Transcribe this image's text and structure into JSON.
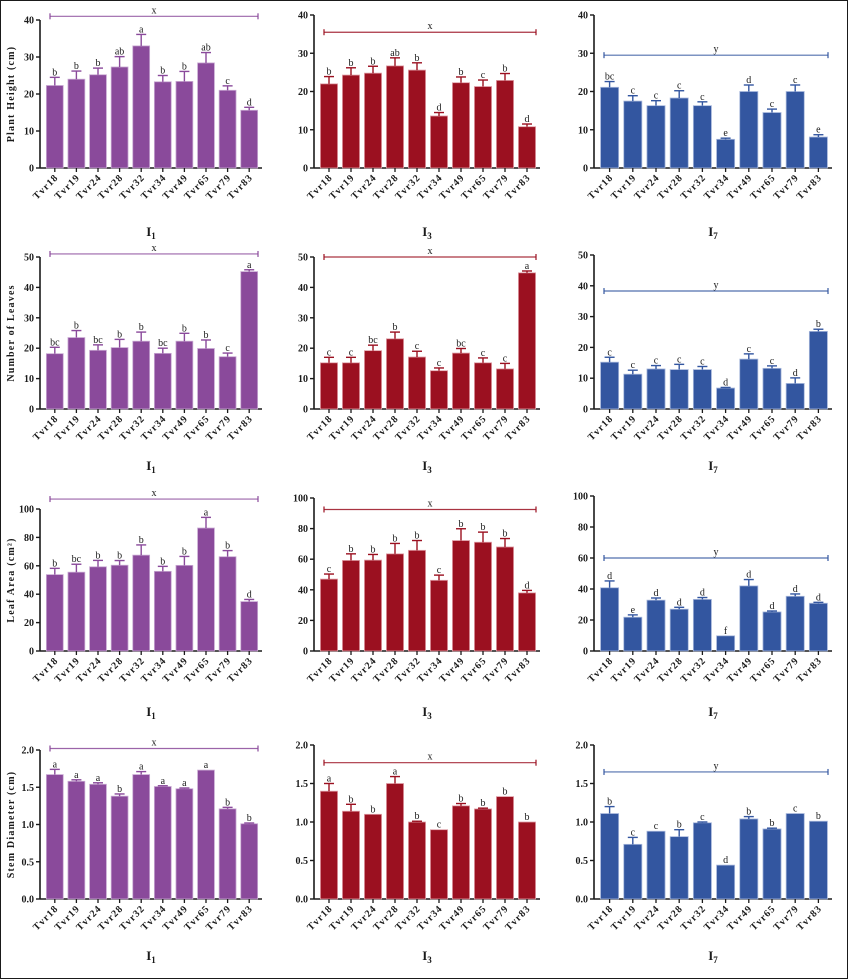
{
  "figure": {
    "categories": [
      "Tvr18",
      "Tvr19",
      "Tvr24",
      "Tvr28",
      "Tvr32",
      "Tvr34",
      "Tvr49",
      "Tvr65",
      "Tvr79",
      "Tvr83"
    ],
    "treatments": [
      {
        "label_main": "I",
        "label_sub": "1",
        "color": "#8a4a9b",
        "edge": "#c8a8d2"
      },
      {
        "label_main": "I",
        "label_sub": "3",
        "color": "#9b1020",
        "edge": "#e0a0a8"
      },
      {
        "label_main": "I",
        "label_sub": "7",
        "color": "#3356a0",
        "edge": "#a8b8dc"
      }
    ]
  },
  "chart_data": [
    {
      "type": "bar",
      "row": 0,
      "col": 0,
      "title": "",
      "xlabel": "I1",
      "ylabel": "Plant Height (cm)",
      "ylim": [
        0,
        40
      ],
      "yticks": [
        "0",
        "10",
        "20",
        "30",
        "40"
      ],
      "yvals": [
        0,
        10,
        20,
        30,
        40
      ],
      "categories": [
        "Tvr18",
        "Tvr19",
        "Tvr24",
        "Tvr28",
        "Tvr32",
        "Tvr34",
        "Tvr49",
        "Tvr65",
        "Tvr79",
        "Tvr83"
      ],
      "values": [
        22.3,
        24,
        25.2,
        27.3,
        33,
        23.3,
        23.4,
        28.4,
        21,
        15.6
      ],
      "errors": [
        2.2,
        2.2,
        1.8,
        2.8,
        3.1,
        1.7,
        2.7,
        2.8,
        1.2,
        0.8
      ],
      "letters": [
        "b",
        "b",
        "b",
        "ab",
        "a",
        "b",
        "b",
        "ab",
        "c",
        "d"
      ],
      "group": {
        "label": "x",
        "y": 41
      }
    },
    {
      "type": "bar",
      "row": 0,
      "col": 1,
      "title": "",
      "xlabel": "I3",
      "ylabel": "",
      "ylim": [
        0,
        40
      ],
      "yticks": [
        "0",
        "10",
        "20",
        "30",
        "40"
      ],
      "yvals": [
        0,
        10,
        20,
        30,
        40
      ],
      "categories": [
        "Tvr18",
        "Tvr19",
        "Tvr24",
        "Tvr28",
        "Tvr32",
        "Tvr34",
        "Tvr49",
        "Tvr65",
        "Tvr79",
        "Tvr83"
      ],
      "values": [
        22,
        24.3,
        24.8,
        26.7,
        25.6,
        13.6,
        22.3,
        21.3,
        22.9,
        10.8
      ],
      "errors": [
        1.9,
        1.9,
        1.8,
        2.1,
        1.9,
        0.9,
        1.5,
        1.7,
        1.8,
        0.7
      ],
      "letters": [
        "b",
        "b",
        "b",
        "ab",
        "b",
        "d",
        "b",
        "c",
        "b",
        "d"
      ],
      "group": {
        "label": "x",
        "y": 35.5
      }
    },
    {
      "type": "bar",
      "row": 0,
      "col": 2,
      "title": "",
      "xlabel": "I7",
      "ylabel": "",
      "ylim": [
        0,
        40
      ],
      "yticks": [
        "0",
        "10",
        "20",
        "30",
        "40"
      ],
      "yvals": [
        0,
        10,
        20,
        30,
        40
      ],
      "categories": [
        "Tvr18",
        "Tvr19",
        "Tvr24",
        "Tvr28",
        "Tvr32",
        "Tvr34",
        "Tvr49",
        "Tvr65",
        "Tvr79",
        "Tvr83"
      ],
      "values": [
        21.1,
        17.5,
        16.3,
        18.3,
        16.3,
        7.5,
        20,
        14.5,
        20,
        8.1
      ],
      "errors": [
        1.5,
        1.4,
        1.3,
        1.9,
        1,
        0.3,
        1.7,
        0.9,
        1.7,
        0.6
      ],
      "letters": [
        "bc",
        "c",
        "c",
        "c",
        "c",
        "e",
        "d",
        "c",
        "c",
        "e"
      ],
      "group": {
        "label": "y",
        "y": 29.5
      }
    },
    {
      "type": "bar",
      "row": 1,
      "col": 0,
      "title": "",
      "xlabel": "I1",
      "ylabel": "Number of Leaves",
      "ylim": [
        0,
        50
      ],
      "yticks": [
        "0",
        "10",
        "20",
        "30",
        "40",
        "50"
      ],
      "yvals": [
        0,
        10,
        20,
        30,
        40,
        50
      ],
      "categories": [
        "Tvr18",
        "Tvr19",
        "Tvr24",
        "Tvr28",
        "Tvr32",
        "Tvr34",
        "Tvr49",
        "Tvr65",
        "Tvr79",
        "Tvr83"
      ],
      "values": [
        18.2,
        23.5,
        19.3,
        20.2,
        22.3,
        18.3,
        22.3,
        19.9,
        17.2,
        45.2
      ],
      "errors": [
        2.1,
        2.3,
        1.8,
        2.7,
        3,
        1.7,
        2.6,
        2.8,
        1.2,
        0.6
      ],
      "letters": [
        "bc",
        "b",
        "bc",
        "b",
        "b",
        "bc",
        "b",
        "b",
        "c",
        "a"
      ],
      "group": {
        "label": "x",
        "y": 51
      }
    },
    {
      "type": "bar",
      "row": 1,
      "col": 1,
      "title": "",
      "xlabel": "I3",
      "ylabel": "",
      "ylim": [
        0,
        50
      ],
      "yticks": [
        "0",
        "10",
        "20",
        "30",
        "40",
        "50"
      ],
      "yvals": [
        0,
        10,
        20,
        30,
        40,
        50
      ],
      "categories": [
        "Tvr18",
        "Tvr19",
        "Tvr24",
        "Tvr28",
        "Tvr32",
        "Tvr34",
        "Tvr49",
        "Tvr65",
        "Tvr79",
        "Tvr83"
      ],
      "values": [
        15.2,
        15.2,
        19.2,
        23.1,
        17.1,
        12.6,
        18.4,
        15.2,
        13.2,
        44.8
      ],
      "errors": [
        1.8,
        1.8,
        1.8,
        2.2,
        1.9,
        0.9,
        1.5,
        1.6,
        1.8,
        0.6
      ],
      "letters": [
        "c",
        "c",
        "bc",
        "b",
        "c",
        "c",
        "bc",
        "c",
        "c",
        "a"
      ],
      "group": {
        "label": "x",
        "y": 50
      }
    },
    {
      "type": "bar",
      "row": 1,
      "col": 2,
      "title": "",
      "xlabel": "I7",
      "ylabel": "",
      "ylim": [
        0,
        50
      ],
      "yticks": [
        "0",
        "10",
        "20",
        "30",
        "40",
        "50"
      ],
      "yvals": [
        0,
        10,
        20,
        30,
        40,
        50
      ],
      "categories": [
        "Tvr18",
        "Tvr19",
        "Tvr24",
        "Tvr28",
        "Tvr32",
        "Tvr34",
        "Tvr49",
        "Tvr65",
        "Tvr79",
        "Tvr83"
      ],
      "values": [
        15.2,
        11.3,
        13,
        12.8,
        12.8,
        6.8,
        16.2,
        13.2,
        8.3,
        25.2
      ],
      "errors": [
        1.6,
        1.3,
        1.1,
        1.7,
        1,
        0.2,
        1.7,
        0.8,
        1.8,
        0.7
      ],
      "letters": [
        "c",
        "c",
        "c",
        "c",
        "c",
        "d",
        "c",
        "c",
        "d",
        "b"
      ],
      "group": {
        "label": "y",
        "y": 38.3
      }
    },
    {
      "type": "bar",
      "row": 2,
      "col": 0,
      "title": "",
      "xlabel": "I1",
      "ylabel": "Leaf Area (cm²)",
      "ylim": [
        0,
        100
      ],
      "yticks": [
        "0",
        "20",
        "40",
        "60",
        "80",
        "100"
      ],
      "yvals": [
        0,
        20,
        40,
        60,
        80,
        100
      ],
      "categories": [
        "Tvr18",
        "Tvr19",
        "Tvr24",
        "Tvr28",
        "Tvr32",
        "Tvr34",
        "Tvr49",
        "Tvr65",
        "Tvr79",
        "Tvr83"
      ],
      "values": [
        53.8,
        55.5,
        59.3,
        60.4,
        67.5,
        56.1,
        60.3,
        86.6,
        66.4,
        34.8
      ],
      "errors": [
        4.4,
        5.6,
        4.5,
        3.3,
        7.2,
        3.5,
        6.3,
        7.5,
        4.3,
        1.5
      ],
      "letters": [
        "b",
        "bc",
        "b",
        "b",
        "b",
        "b",
        "b",
        "a",
        "b",
        "d"
      ],
      "group": {
        "label": "x",
        "y": 107
      }
    },
    {
      "type": "bar",
      "row": 2,
      "col": 1,
      "title": "",
      "xlabel": "I3",
      "ylabel": "",
      "ylim": [
        0,
        100
      ],
      "yticks": [
        "0",
        "20",
        "40",
        "60",
        "80",
        "100"
      ],
      "yvals": [
        0,
        20,
        40,
        60,
        80,
        100
      ],
      "categories": [
        "Tvr18",
        "Tvr19",
        "Tvr24",
        "Tvr28",
        "Tvr32",
        "Tvr34",
        "Tvr49",
        "Tvr65",
        "Tvr79",
        "Tvr83"
      ],
      "values": [
        47,
        59.2,
        59.4,
        63.5,
        65.8,
        46.2,
        72.2,
        71.1,
        68,
        38
      ],
      "errors": [
        3.3,
        4.3,
        3.7,
        6.8,
        6.4,
        3.4,
        7.7,
        6.6,
        5.5,
        1.6
      ],
      "letters": [
        "c",
        "b",
        "b",
        "b",
        "b",
        "c",
        "b",
        "b",
        "b",
        "d"
      ],
      "group": {
        "label": "x",
        "y": 92.5
      }
    },
    {
      "type": "bar",
      "row": 2,
      "col": 2,
      "title": "",
      "xlabel": "I7",
      "ylabel": "",
      "ylim": [
        0,
        100
      ],
      "yticks": [
        "0",
        "20",
        "40",
        "60",
        "80",
        "100"
      ],
      "yvals": [
        0,
        20,
        40,
        60,
        80,
        100
      ],
      "categories": [
        "Tvr18",
        "Tvr19",
        "Tvr24",
        "Tvr28",
        "Tvr32",
        "Tvr34",
        "Tvr49",
        "Tvr65",
        "Tvr79",
        "Tvr83"
      ],
      "values": [
        40.8,
        21.8,
        32.8,
        27,
        33.3,
        9.8,
        42,
        25.2,
        35.3,
        30.8
      ],
      "errors": [
        4.4,
        1.5,
        1.4,
        1.2,
        1.2,
        0,
        4.1,
        0.6,
        1.5,
        0.6
      ],
      "letters": [
        "d",
        "e",
        "d",
        "d",
        "d",
        "f",
        "d",
        "d",
        "d",
        "d"
      ],
      "group": {
        "label": "y",
        "y": 60
      }
    },
    {
      "type": "bar",
      "row": 3,
      "col": 0,
      "title": "",
      "xlabel": "I1",
      "ylabel": "Stem Diameter (cm)",
      "ylim": [
        0,
        2
      ],
      "yticks": [
        "0.0",
        "0.5",
        "1.0",
        "1.5",
        "2.0"
      ],
      "yvals": [
        0,
        0.5,
        1,
        1.5,
        2
      ],
      "categories": [
        "Tvr18",
        "Tvr19",
        "Tvr24",
        "Tvr28",
        "Tvr32",
        "Tvr34",
        "Tvr49",
        "Tvr65",
        "Tvr79",
        "Tvr83"
      ],
      "values": [
        1.67,
        1.58,
        1.54,
        1.38,
        1.67,
        1.51,
        1.48,
        1.73,
        1.21,
        1.01
      ],
      "errors": [
        0.07,
        0.02,
        0.02,
        0.03,
        0.04,
        0.01,
        0.01,
        0,
        0.02,
        0.01
      ],
      "letters": [
        "a",
        "a",
        "a",
        "b",
        "a",
        "a",
        "a",
        "a",
        "b",
        "b"
      ],
      "group": {
        "label": "x",
        "y": 2.02
      }
    },
    {
      "type": "bar",
      "row": 3,
      "col": 1,
      "title": "",
      "xlabel": "I3",
      "ylabel": "",
      "ylim": [
        0,
        2
      ],
      "yticks": [
        "0.0",
        "0.5",
        "1.0",
        "1.5",
        "2.0"
      ],
      "yvals": [
        0,
        0.5,
        1,
        1.5,
        2
      ],
      "categories": [
        "Tvr18",
        "Tvr19",
        "Tvr24",
        "Tvr28",
        "Tvr32",
        "Tvr34",
        "Tvr49",
        "Tvr65",
        "Tvr79",
        "Tvr83"
      ],
      "values": [
        1.4,
        1.14,
        1.1,
        1.5,
        1,
        0.9,
        1.21,
        1.17,
        1.33,
        1
      ],
      "errors": [
        0.1,
        0.09,
        0,
        0.09,
        0.01,
        0,
        0.03,
        0.01,
        0,
        0
      ],
      "letters": [
        "a",
        "b",
        "b",
        "a",
        "b",
        "c",
        "b",
        "b",
        "b",
        "b"
      ],
      "group": {
        "label": "x",
        "y": 1.77
      }
    },
    {
      "type": "bar",
      "row": 3,
      "col": 2,
      "title": "",
      "xlabel": "I7",
      "ylabel": "",
      "ylim": [
        0,
        2
      ],
      "yticks": [
        "0.0",
        "0.5",
        "1.0",
        "1.5",
        "2.0"
      ],
      "yvals": [
        0,
        0.5,
        1,
        1.5,
        2
      ],
      "categories": [
        "Tvr18",
        "Tvr19",
        "Tvr24",
        "Tvr28",
        "Tvr32",
        "Tvr34",
        "Tvr49",
        "Tvr65",
        "Tvr79",
        "Tvr83"
      ],
      "values": [
        1.11,
        0.71,
        0.88,
        0.81,
        0.99,
        0.44,
        1.04,
        0.91,
        1.11,
        1.01
      ],
      "errors": [
        0.09,
        0.09,
        0,
        0.09,
        0.01,
        0,
        0.03,
        0.01,
        0,
        0
      ],
      "letters": [
        "b",
        "c",
        "c",
        "b",
        "c",
        "d",
        "b",
        "b",
        "c",
        "b"
      ],
      "group": {
        "label": "y",
        "y": 1.65
      }
    }
  ]
}
